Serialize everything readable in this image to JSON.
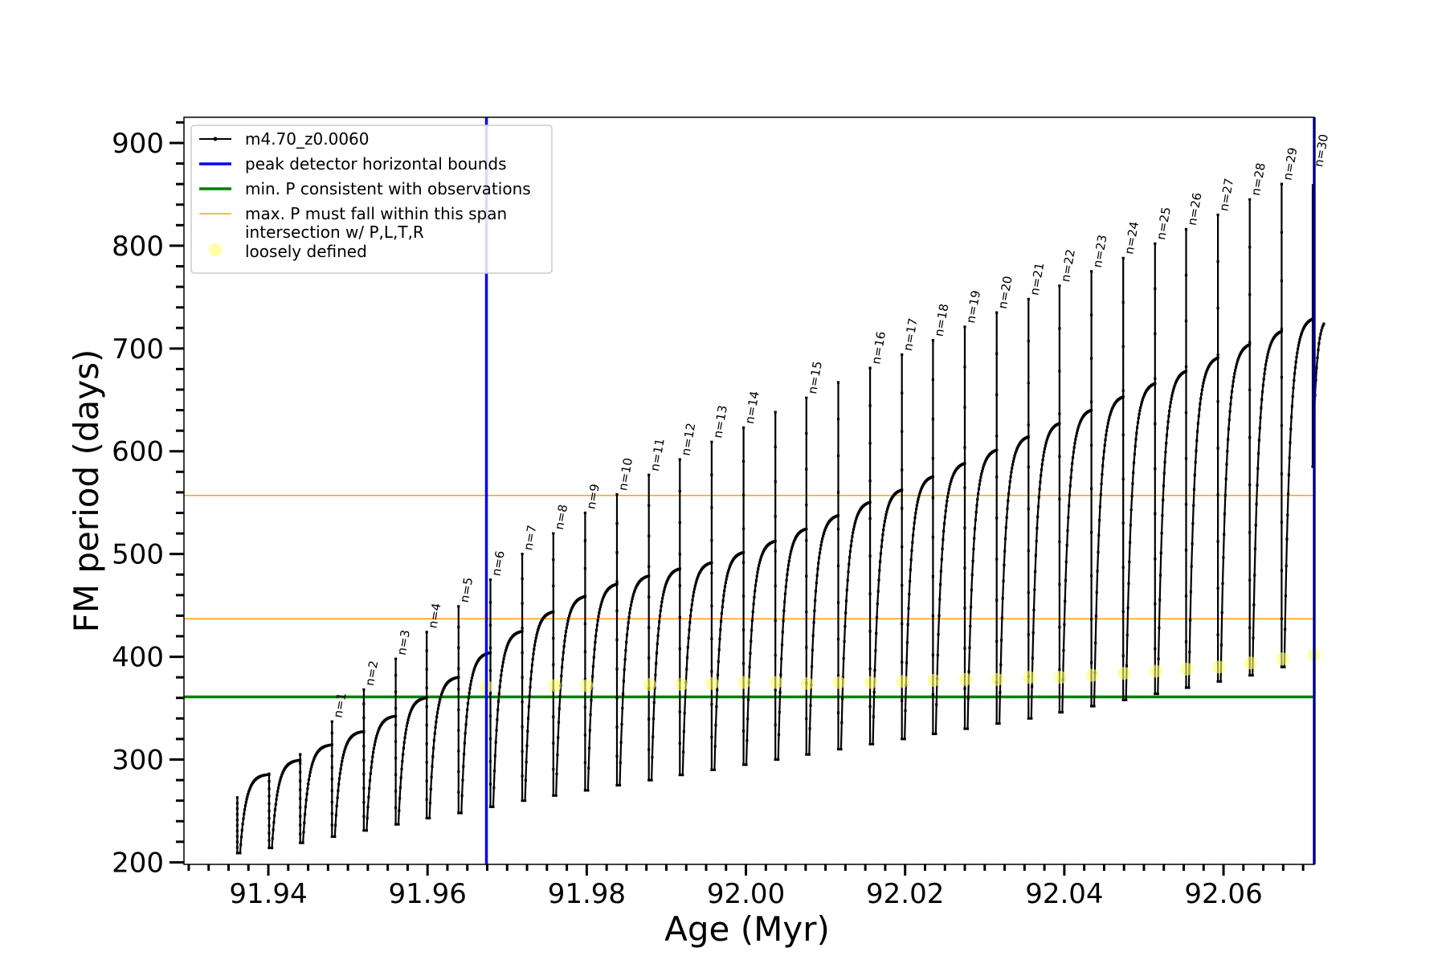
{
  "chart_data": {
    "type": "line",
    "xlabel": "Age (Myr)",
    "ylabel": "FM period (days)",
    "xlim": [
      91.9294,
      92.0714
    ],
    "ylim": [
      198,
      925
    ],
    "xticks": [
      "91.94",
      "91.96",
      "91.98",
      "92.00",
      "92.02",
      "92.04",
      "92.06"
    ],
    "xtick_values": [
      91.94,
      91.96,
      91.98,
      92.0,
      92.02,
      92.04,
      92.06
    ],
    "yticks": [
      "200",
      "300",
      "400",
      "500",
      "600",
      "700",
      "800",
      "900"
    ],
    "ytick_values": [
      200,
      300,
      400,
      500,
      600,
      700,
      800,
      900
    ],
    "colors": {
      "track": "#000000",
      "bounds": "#0000ff",
      "min_period": "#008000",
      "max_period_span": "#ffa500",
      "intersection": "#ffff66"
    },
    "series": [
      {
        "name": "m4.70_z0.0060",
        "thermal_pulses": [
          {
            "x": 91.9361,
            "spike": 263,
            "min": 209,
            "plateau": 286
          },
          {
            "x": 91.9401,
            "spike": 286,
            "min": 214,
            "plateau": 300
          },
          {
            "x": 91.944,
            "spike": 305,
            "min": 219,
            "plateau": 315
          },
          {
            "x": 91.948,
            "spike": 337,
            "min": 225,
            "plateau": 328
          },
          {
            "x": 91.952,
            "spike": 368,
            "min": 231,
            "plateau": 343
          },
          {
            "x": 91.956,
            "spike": 398,
            "min": 237,
            "plateau": 361
          },
          {
            "x": 91.9599,
            "spike": 424,
            "min": 243,
            "plateau": 381
          },
          {
            "x": 91.9639,
            "spike": 449,
            "min": 248,
            "plateau": 405
          },
          {
            "x": 91.9679,
            "spike": 475,
            "min": 254,
            "plateau": 426
          },
          {
            "x": 91.9719,
            "spike": 500,
            "min": 260,
            "plateau": 445
          },
          {
            "x": 91.9758,
            "spike": 520,
            "min": 265,
            "plateau": 460
          },
          {
            "x": 91.9798,
            "spike": 540,
            "min": 270,
            "plateau": 472
          },
          {
            "x": 91.9838,
            "spike": 558,
            "min": 275,
            "plateau": 480
          },
          {
            "x": 91.9878,
            "spike": 577,
            "min": 280,
            "plateau": 487
          },
          {
            "x": 91.9917,
            "spike": 592,
            "min": 285,
            "plateau": 493
          },
          {
            "x": 91.9957,
            "spike": 609,
            "min": 290,
            "plateau": 503
          },
          {
            "x": 91.9997,
            "spike": 623,
            "min": 295,
            "plateau": 514
          },
          {
            "x": 92.0037,
            "spike": 638,
            "min": 300,
            "plateau": 526
          },
          {
            "x": 92.0076,
            "spike": 652,
            "min": 305,
            "plateau": 539
          },
          {
            "x": 92.0116,
            "spike": 667,
            "min": 310,
            "plateau": 552
          },
          {
            "x": 92.0156,
            "spike": 681,
            "min": 315,
            "plateau": 564
          },
          {
            "x": 92.0196,
            "spike": 694,
            "min": 320,
            "plateau": 577
          },
          {
            "x": 92.0235,
            "spike": 708,
            "min": 325,
            "plateau": 590
          },
          {
            "x": 92.0275,
            "spike": 721,
            "min": 330,
            "plateau": 603
          },
          {
            "x": 92.0315,
            "spike": 735,
            "min": 335,
            "plateau": 616
          },
          {
            "x": 92.0355,
            "spike": 748,
            "min": 340,
            "plateau": 629
          },
          {
            "x": 92.0394,
            "spike": 761,
            "min": 346,
            "plateau": 642
          },
          {
            "x": 92.0434,
            "spike": 775,
            "min": 352,
            "plateau": 655
          },
          {
            "x": 92.0474,
            "spike": 788,
            "min": 358,
            "plateau": 668
          },
          {
            "x": 92.0514,
            "spike": 802,
            "min": 364,
            "plateau": 680
          },
          {
            "x": 92.0553,
            "spike": 816,
            "min": 370,
            "plateau": 693
          },
          {
            "x": 92.0593,
            "spike": 830,
            "min": 376,
            "plateau": 706
          },
          {
            "x": 92.0633,
            "spike": 845,
            "min": 382,
            "plateau": 719
          },
          {
            "x": 92.0673,
            "spike": 860,
            "min": 390,
            "plateau": 731
          }
        ],
        "final_segment": {
          "x_start": 92.0712,
          "x_end": 92.0726,
          "y_start": 585,
          "y_end": 724
        }
      }
    ],
    "vertical_lines": {
      "name": "peak detector horizontal bounds",
      "x": [
        91.9674,
        92.0714
      ]
    },
    "min_period_line": {
      "name": "min. P consistent with observations",
      "y": 361
    },
    "max_period_lines": {
      "name": "max. P must fall within this span",
      "y": [
        437,
        557
      ]
    },
    "intersections": {
      "name": "intersection w/ P,L,T,R",
      "points": [
        {
          "x": 91.9674,
          "y": 371
        },
        {
          "x": 91.976,
          "y": 372
        },
        {
          "x": 91.98,
          "y": 372
        },
        {
          "x": 91.9879,
          "y": 373
        },
        {
          "x": 91.9919,
          "y": 373
        },
        {
          "x": 91.9958,
          "y": 374
        },
        {
          "x": 91.9998,
          "y": 375
        },
        {
          "x": 92.0038,
          "y": 375
        },
        {
          "x": 92.0077,
          "y": 374
        },
        {
          "x": 92.0117,
          "y": 375
        },
        {
          "x": 92.0157,
          "y": 375
        },
        {
          "x": 92.0197,
          "y": 376
        },
        {
          "x": 92.0236,
          "y": 377
        },
        {
          "x": 92.0276,
          "y": 378
        },
        {
          "x": 92.0316,
          "y": 378
        },
        {
          "x": 92.0356,
          "y": 380
        },
        {
          "x": 92.0395,
          "y": 380
        },
        {
          "x": 92.0435,
          "y": 382
        },
        {
          "x": 92.0475,
          "y": 384
        },
        {
          "x": 92.0515,
          "y": 386
        },
        {
          "x": 92.0554,
          "y": 388
        },
        {
          "x": 92.0594,
          "y": 390
        },
        {
          "x": 92.0634,
          "y": 394
        },
        {
          "x": 92.0674,
          "y": 398
        },
        {
          "x": 92.0714,
          "y": 402
        }
      ]
    },
    "pulse_labels": [
      {
        "n": "n=1",
        "x": 91.948,
        "y": 337
      },
      {
        "n": "n=2",
        "x": 91.952,
        "y": 368
      },
      {
        "n": "n=3",
        "x": 91.956,
        "y": 398
      },
      {
        "n": "n=4",
        "x": 91.9599,
        "y": 424
      },
      {
        "n": "n=5",
        "x": 91.9639,
        "y": 449
      },
      {
        "n": "n=6",
        "x": 91.9679,
        "y": 475
      },
      {
        "n": "n=7",
        "x": 91.9719,
        "y": 500
      },
      {
        "n": "n=8",
        "x": 91.9758,
        "y": 520
      },
      {
        "n": "n=9",
        "x": 91.9798,
        "y": 540
      },
      {
        "n": "n=10",
        "x": 91.9838,
        "y": 558
      },
      {
        "n": "n=11",
        "x": 91.9878,
        "y": 577
      },
      {
        "n": "n=12",
        "x": 91.9917,
        "y": 592
      },
      {
        "n": "n=13",
        "x": 91.9957,
        "y": 609
      },
      {
        "n": "n=14",
        "x": 91.9997,
        "y": 623
      },
      {
        "n": "n=15",
        "x": 92.0076,
        "y": 652
      },
      {
        "n": "n=16",
        "x": 92.0156,
        "y": 681
      },
      {
        "n": "n=17",
        "x": 92.0196,
        "y": 694
      },
      {
        "n": "n=18",
        "x": 92.0235,
        "y": 708
      },
      {
        "n": "n=19",
        "x": 92.0275,
        "y": 721
      },
      {
        "n": "n=20",
        "x": 92.0315,
        "y": 735
      },
      {
        "n": "n=21",
        "x": 92.0355,
        "y": 748
      },
      {
        "n": "n=22",
        "x": 92.0394,
        "y": 761
      },
      {
        "n": "n=23",
        "x": 92.0434,
        "y": 775
      },
      {
        "n": "n=24",
        "x": 92.0474,
        "y": 788
      },
      {
        "n": "n=25",
        "x": 92.0514,
        "y": 802
      },
      {
        "n": "n=26",
        "x": 92.0553,
        "y": 816
      },
      {
        "n": "n=27",
        "x": 92.0593,
        "y": 830
      },
      {
        "n": "n=28",
        "x": 92.0633,
        "y": 845
      },
      {
        "n": "n=29",
        "x": 92.0673,
        "y": 860
      },
      {
        "n": "n=30",
        "x": 92.0712,
        "y": 873
      }
    ],
    "legend": {
      "position": "upper left",
      "entries": [
        {
          "label": "m4.70_z0.0060",
          "kind": "line-marker",
          "color": "#000000"
        },
        {
          "label": "peak detector horizontal bounds",
          "kind": "line",
          "color": "#0000ff"
        },
        {
          "label": "min. P consistent with observations",
          "kind": "line",
          "color": "#008000"
        },
        {
          "label": "max. P must fall within this span",
          "kind": "thin-line",
          "color": "#ffa500"
        },
        {
          "label": "intersection w/ P,L,T,R\nloosely defined",
          "kind": "dot",
          "color": "#ffff66"
        }
      ]
    }
  }
}
